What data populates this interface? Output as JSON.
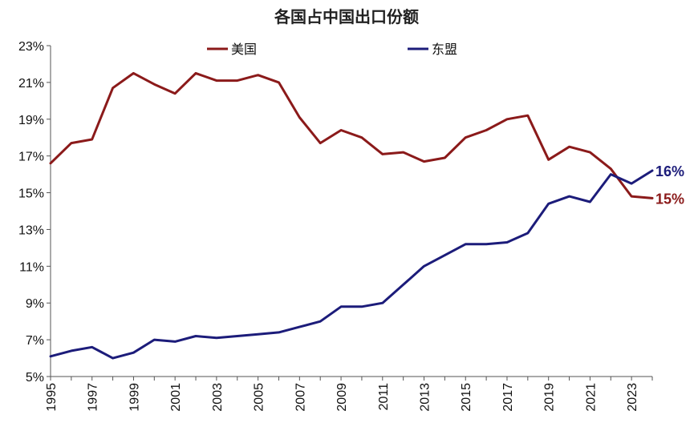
{
  "chart_data": {
    "type": "line",
    "title": "各国占中国出口份额",
    "xlabel": "",
    "ylabel": "",
    "x": [
      1995,
      1996,
      1997,
      1998,
      1999,
      2000,
      2001,
      2002,
      2003,
      2004,
      2005,
      2006,
      2007,
      2008,
      2009,
      2010,
      2011,
      2012,
      2013,
      2014,
      2015,
      2016,
      2017,
      2018,
      2019,
      2020,
      2021,
      2022,
      2023,
      2024
    ],
    "xticks": [
      "1995",
      "1997",
      "1999",
      "2001",
      "2003",
      "2005",
      "2007",
      "2009",
      "2011",
      "2013",
      "2015",
      "2017",
      "2019",
      "2021",
      "2023"
    ],
    "xlim": [
      1995,
      2024
    ],
    "ylim": [
      5,
      23
    ],
    "yticks": [
      "5%",
      "7%",
      "9%",
      "11%",
      "13%",
      "15%",
      "17%",
      "19%",
      "21%",
      "23%"
    ],
    "grid": false,
    "legend": "top",
    "series": [
      {
        "name": "美国",
        "color": "#8B1A1A",
        "values": [
          16.6,
          17.7,
          17.9,
          20.7,
          21.5,
          20.9,
          20.4,
          21.5,
          21.1,
          21.1,
          21.4,
          21.0,
          19.1,
          17.7,
          18.4,
          18.0,
          17.1,
          17.2,
          16.7,
          16.9,
          18.0,
          18.4,
          19.0,
          19.2,
          16.8,
          17.5,
          17.2,
          16.3,
          14.8,
          14.7
        ],
        "end_label": "15%"
      },
      {
        "name": "东盟",
        "color": "#1C1C7A",
        "values": [
          6.1,
          6.4,
          6.6,
          6.0,
          6.3,
          7.0,
          6.9,
          7.2,
          7.1,
          7.2,
          7.3,
          7.4,
          7.7,
          8.0,
          8.8,
          8.8,
          9.0,
          10.0,
          11.0,
          11.6,
          12.2,
          12.2,
          12.3,
          12.8,
          14.4,
          14.8,
          14.5,
          16.0,
          15.5,
          16.2
        ],
        "end_label": "16%"
      }
    ]
  }
}
